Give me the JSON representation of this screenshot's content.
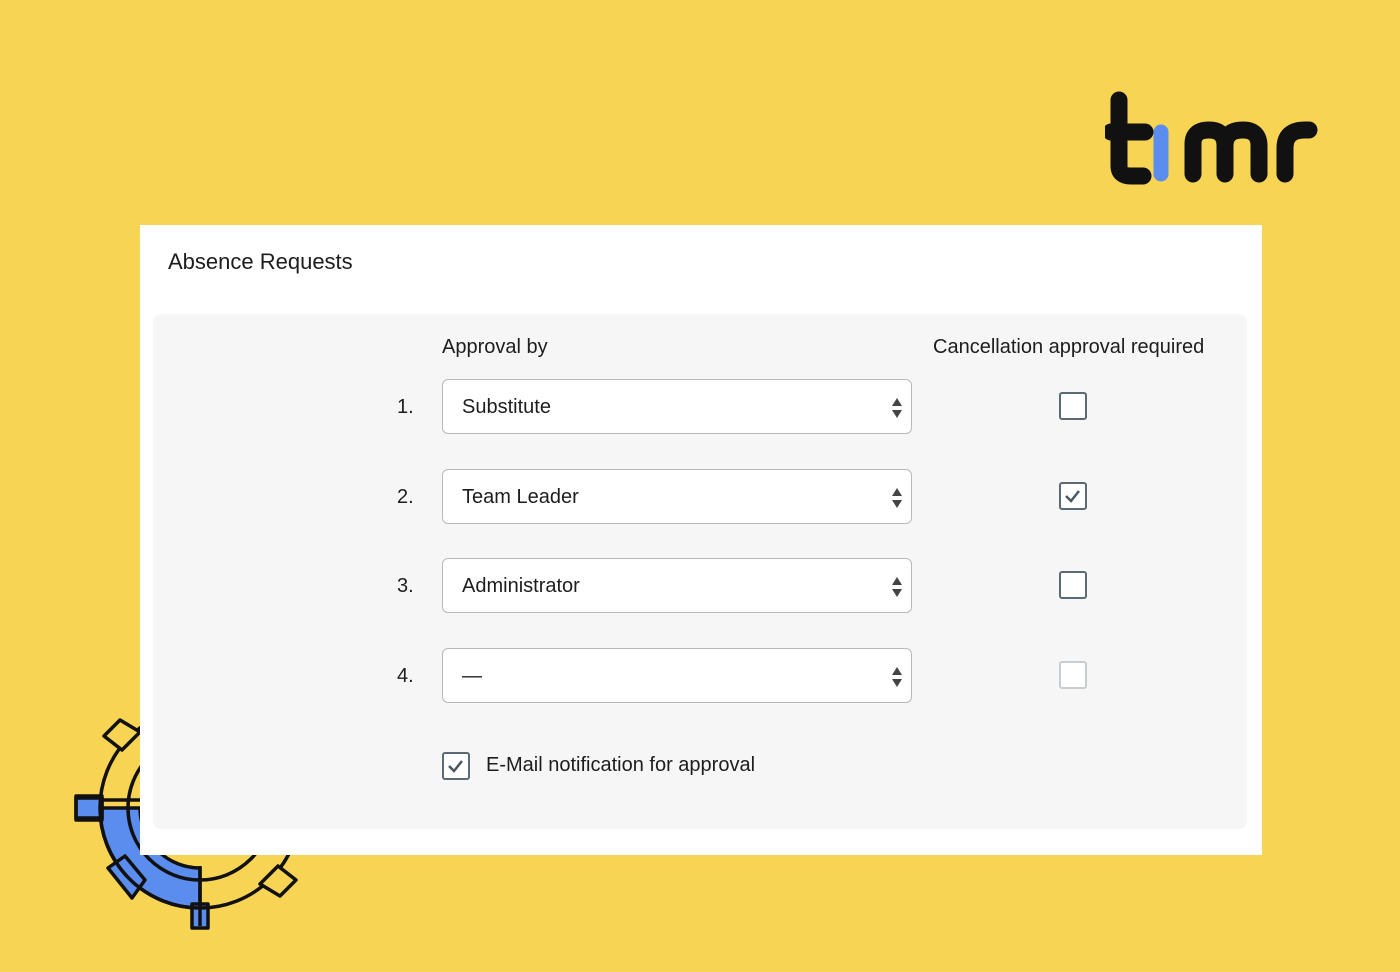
{
  "brand": {
    "logo_text": "timr",
    "accent": "#5b8def",
    "background": "#f8d454"
  },
  "card": {
    "title": "Absence Requests"
  },
  "columns": {
    "approval": "Approval by",
    "cancellation": "Cancellation approval required"
  },
  "rows": [
    {
      "number": "1.",
      "value": "Substitute",
      "cancellation_checked": false,
      "disabled": false
    },
    {
      "number": "2.",
      "value": "Team Leader",
      "cancellation_checked": true,
      "disabled": false
    },
    {
      "number": "3.",
      "value": "Administrator",
      "cancellation_checked": false,
      "disabled": false
    },
    {
      "number": "4.",
      "value": "—",
      "cancellation_checked": false,
      "disabled": true
    }
  ],
  "email_notification": {
    "label": "E-Mail notification for approval",
    "checked": true
  }
}
